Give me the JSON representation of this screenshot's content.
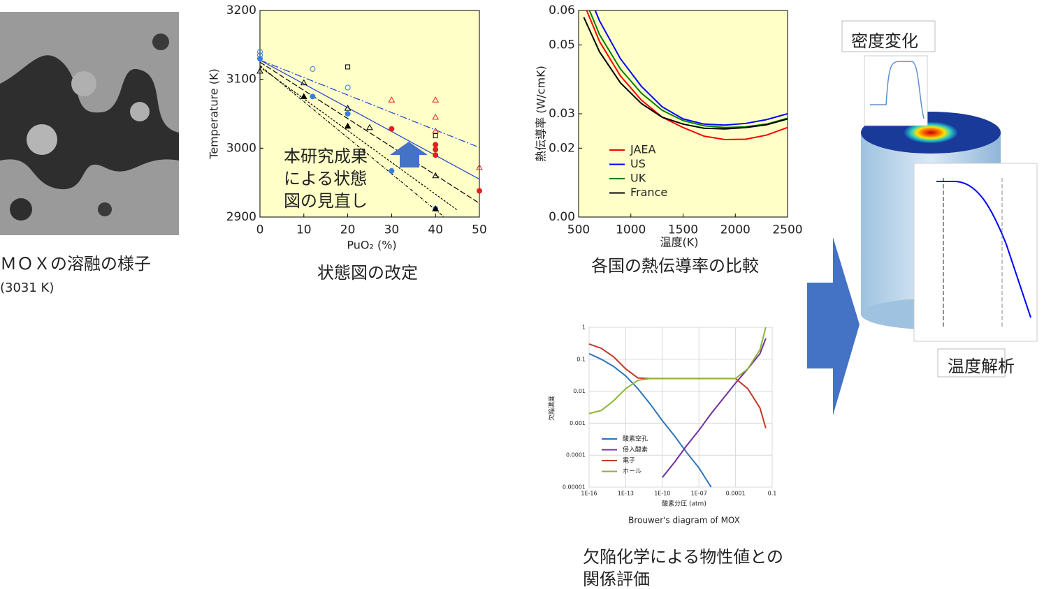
{
  "chart_data": [
    {
      "type": "scatter",
      "ylabel": "Temperature (K)",
      "xlabel": "PuO₂ (%)",
      "annotation": [
        "本研究成果",
        "による状態",
        "図の見直し"
      ],
      "xlim": [
        0,
        50
      ],
      "ylim": [
        2900,
        3200
      ],
      "xticks": [
        0,
        10,
        20,
        30,
        40,
        50
      ],
      "yticks": [
        2900,
        3000,
        3100,
        3200
      ],
      "background": "#ffffc8",
      "line_series": [
        {
          "color": "#1f3fd0",
          "dash": "10 3 2 3",
          "x": [
            0,
            50
          ],
          "values": [
            3128,
            3001
          ]
        },
        {
          "color": "#1f3fd0",
          "dash": "none",
          "x": [
            0,
            50
          ],
          "values": [
            3128,
            2955
          ]
        },
        {
          "color": "#000000",
          "dash": "8 3",
          "x": [
            0,
            50
          ],
          "values": [
            3125,
            2920
          ]
        },
        {
          "color": "#000000",
          "dash": "4 2 1 2",
          "x": [
            0,
            42
          ],
          "values": [
            3120,
            2900
          ]
        },
        {
          "color": "#000000",
          "dash": "3 2",
          "x": [
            0,
            45
          ],
          "values": [
            3118,
            2910
          ]
        }
      ],
      "series": [
        {
          "color": "#3a7be0",
          "marker": "circle-open",
          "x": [
            0,
            12,
            20,
            0
          ],
          "values": [
            3140,
            3115,
            3088,
            3135
          ]
        },
        {
          "color": "#3a7be0",
          "marker": "circle",
          "x": [
            0,
            12,
            20,
            30,
            40
          ],
          "values": [
            3130,
            3075,
            3050,
            2967,
            2912
          ]
        },
        {
          "color": "#e02020",
          "marker": "triangle-open",
          "x": [
            30,
            40,
            40,
            40,
            50
          ],
          "values": [
            3070,
            3070,
            3045,
            3025,
            2972
          ]
        },
        {
          "color": "#e02020",
          "marker": "circle",
          "x": [
            30,
            40,
            40,
            40,
            50
          ],
          "values": [
            3028,
            3005,
            2998,
            2990,
            2938
          ]
        },
        {
          "color": "#000000",
          "marker": "triangle-open",
          "x": [
            0,
            10,
            20,
            25,
            40
          ],
          "values": [
            3112,
            3095,
            3058,
            3030,
            2960
          ]
        },
        {
          "color": "#000000",
          "marker": "triangle",
          "x": [
            10,
            20,
            40
          ],
          "values": [
            3075,
            3032,
            2912
          ]
        },
        {
          "color": "#000000",
          "marker": "square-open",
          "x": [
            20,
            40
          ],
          "values": [
            3118,
            3018
          ]
        }
      ]
    },
    {
      "type": "line",
      "ylabel": "熱伝導率 (W/cmK)",
      "xlabel": "温度(K)",
      "xlim": [
        500,
        2500
      ],
      "ylim": [
        0,
        0.06
      ],
      "xticks": [
        500,
        1000,
        1500,
        2000,
        2500
      ],
      "yticks": [
        {
          "value": 0,
          "label": "0.00"
        },
        0.02,
        0.03,
        0.05,
        0.06
      ],
      "background": "#ffffc8",
      "legend": "lower left",
      "x": [
        550,
        700,
        900,
        1100,
        1300,
        1500,
        1700,
        1900,
        2100,
        2300,
        2500
      ],
      "series": [
        {
          "name": "JAEA",
          "color": "#ff0000",
          "values": [
            0.062,
            0.051,
            0.041,
            0.034,
            0.029,
            0.026,
            0.0235,
            0.0225,
            0.0226,
            0.0238,
            0.026
          ]
        },
        {
          "name": "US",
          "color": "#0000ff",
          "values": [
            0.068,
            0.057,
            0.046,
            0.038,
            0.032,
            0.0285,
            0.027,
            0.0267,
            0.0272,
            0.0283,
            0.03
          ]
        },
        {
          "name": "UK",
          "color": "#008000",
          "values": [
            0.064,
            0.053,
            0.043,
            0.036,
            0.031,
            0.028,
            0.0265,
            0.026,
            0.0262,
            0.027,
            0.0287
          ]
        },
        {
          "name": "France",
          "color": "#000000",
          "values": [
            0.058,
            0.048,
            0.039,
            0.033,
            0.029,
            0.027,
            0.0258,
            0.0256,
            0.026,
            0.0268,
            0.0285
          ]
        }
      ]
    },
    {
      "type": "line",
      "title": "Brouwer's diagram of MOX",
      "ylabel": "欠陥濃度",
      "xlabel": "酸素分圧  (atm)",
      "xlog": true,
      "ylog": true,
      "grid": true,
      "legend": "lower left",
      "background": "#ffffff",
      "xlim": [
        1e-16,
        0.1
      ],
      "ylim": [
        1e-05,
        1
      ],
      "xticks": [
        {
          "value": 1e-16,
          "label": "1E-16"
        },
        {
          "value": 1e-13,
          "label": "1E-13"
        },
        {
          "value": 1e-10,
          "label": "1E-10"
        },
        {
          "value": 1e-07,
          "label": "1E-07"
        },
        {
          "value": 0.0001,
          "label": "0.0001"
        },
        0.1
      ],
      "yticks": [
        {
          "value": 1e-05,
          "label": "0.00001"
        },
        {
          "value": 0.0001,
          "label": "0.0001"
        },
        0.001,
        0.01,
        0.1,
        1
      ],
      "x": [
        1e-16,
        1e-15,
        1e-14,
        1e-13,
        1e-12,
        1e-11,
        1e-10,
        1e-09,
        1e-08,
        1e-07,
        1e-06,
        1e-05,
        0.0001,
        0.001,
        0.01,
        0.03
      ],
      "series": [
        {
          "name": "酸素空孔",
          "color": "#2e75b6",
          "values": [
            0.15,
            0.1,
            0.06,
            0.03,
            0.012,
            0.004,
            0.0012,
            0.0004,
            0.00012,
            4e-05,
            1e-05,
            null,
            null,
            null,
            null,
            null
          ]
        },
        {
          "name": "侵入酸素",
          "color": "#7030a0",
          "values": [
            null,
            null,
            null,
            null,
            null,
            null,
            2e-05,
            6e-05,
            0.0002,
            0.0006,
            0.002,
            0.006,
            0.018,
            0.05,
            0.15,
            0.45
          ]
        },
        {
          "name": "電子",
          "color": "#c0392b",
          "values": [
            0.3,
            0.22,
            0.12,
            0.05,
            0.026,
            0.025,
            0.025,
            0.025,
            0.025,
            0.025,
            0.025,
            0.025,
            0.025,
            0.012,
            0.003,
            0.0007
          ]
        },
        {
          "name": "ホール",
          "color": "#8db33a",
          "values": [
            0.002,
            0.0025,
            0.005,
            0.012,
            0.022,
            0.025,
            0.025,
            0.025,
            0.025,
            0.025,
            0.025,
            0.025,
            0.025,
            0.05,
            0.2,
            1
          ]
        }
      ]
    }
  ],
  "captions": {
    "mox": "ＭＯＸの溶融の様子",
    "mox_temp": "(3031 K)",
    "phase": "状態図の改定",
    "conductivity": "各国の熱伝導率の比較",
    "defect": [
      "欠陥化学による物性値との",
      "関係評価"
    ],
    "density": "密度変化",
    "temperature": "温度解析"
  }
}
